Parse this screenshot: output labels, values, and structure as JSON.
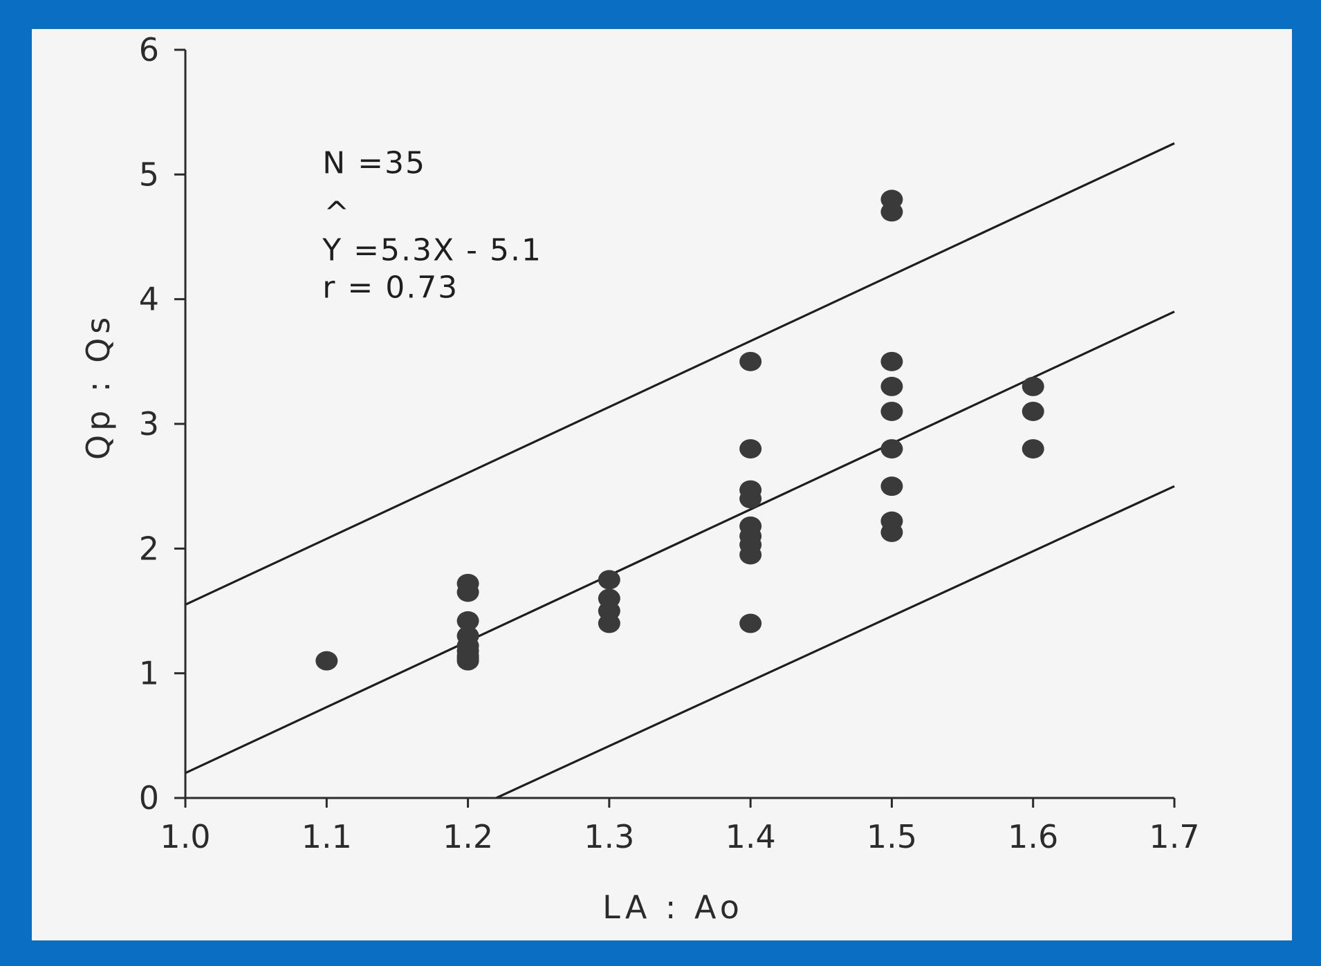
{
  "chart_data": {
    "type": "scatter",
    "title": "",
    "xlabel": "LA : Ao",
    "ylabel": "Qp : Qs",
    "xlim": [
      1.0,
      1.7
    ],
    "ylim": [
      0,
      6
    ],
    "xticks": [
      "1.0",
      "1.1",
      "1.2",
      "1.3",
      "1.4",
      "1.5",
      "1.6",
      "1.7"
    ],
    "yticks": [
      "0",
      "1",
      "2",
      "3",
      "4",
      "5",
      "6"
    ],
    "grid": false,
    "legend": "none",
    "annotations": {
      "n": "N =35",
      "hat": "^",
      "equation": "Y =5.3X - 5.1",
      "r": "r = 0.73"
    },
    "points": [
      {
        "x": 1.1,
        "y": 1.1
      },
      {
        "x": 1.2,
        "y": 1.1
      },
      {
        "x": 1.2,
        "y": 1.12
      },
      {
        "x": 1.2,
        "y": 1.14
      },
      {
        "x": 1.2,
        "y": 1.18
      },
      {
        "x": 1.2,
        "y": 1.22
      },
      {
        "x": 1.2,
        "y": 1.3
      },
      {
        "x": 1.2,
        "y": 1.42
      },
      {
        "x": 1.2,
        "y": 1.65
      },
      {
        "x": 1.2,
        "y": 1.72
      },
      {
        "x": 1.3,
        "y": 1.4
      },
      {
        "x": 1.3,
        "y": 1.5
      },
      {
        "x": 1.3,
        "y": 1.6
      },
      {
        "x": 1.3,
        "y": 1.75
      },
      {
        "x": 1.4,
        "y": 1.4
      },
      {
        "x": 1.4,
        "y": 1.95
      },
      {
        "x": 1.4,
        "y": 2.03
      },
      {
        "x": 1.4,
        "y": 2.1
      },
      {
        "x": 1.4,
        "y": 2.18
      },
      {
        "x": 1.4,
        "y": 2.4
      },
      {
        "x": 1.4,
        "y": 2.47
      },
      {
        "x": 1.4,
        "y": 2.8
      },
      {
        "x": 1.4,
        "y": 3.5
      },
      {
        "x": 1.5,
        "y": 2.13
      },
      {
        "x": 1.5,
        "y": 2.22
      },
      {
        "x": 1.5,
        "y": 2.5
      },
      {
        "x": 1.5,
        "y": 2.8
      },
      {
        "x": 1.5,
        "y": 3.1
      },
      {
        "x": 1.5,
        "y": 3.3
      },
      {
        "x": 1.5,
        "y": 3.5
      },
      {
        "x": 1.5,
        "y": 4.7
      },
      {
        "x": 1.5,
        "y": 4.8
      },
      {
        "x": 1.6,
        "y": 2.8
      },
      {
        "x": 1.6,
        "y": 3.1
      },
      {
        "x": 1.6,
        "y": 3.3
      }
    ],
    "lines": [
      {
        "x": [
          1.0,
          1.7
        ],
        "y": [
          1.55,
          5.25
        ]
      },
      {
        "x": [
          1.0,
          1.7
        ],
        "y": [
          0.2,
          3.9
        ]
      },
      {
        "x": [
          1.22,
          1.7
        ],
        "y": [
          0.0,
          2.5
        ]
      }
    ]
  },
  "colors": {
    "frame": "#0a6fc2",
    "panel": "#f5f5f5",
    "ink": "#2b2b2b",
    "point": "#3a3a3a"
  }
}
